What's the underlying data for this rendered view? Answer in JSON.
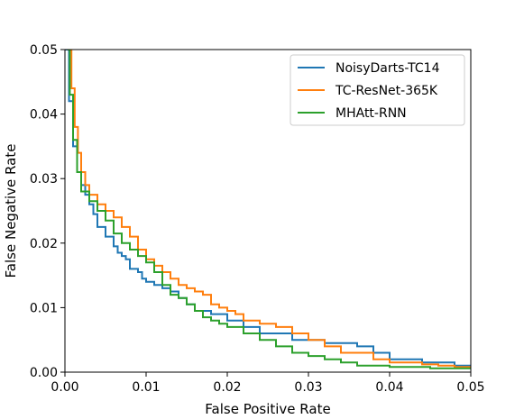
{
  "chart_data": {
    "type": "line",
    "title": "",
    "xlabel": "False Positive Rate",
    "ylabel": "False Negative Rate",
    "xlim": [
      0,
      0.05
    ],
    "ylim": [
      0,
      0.05
    ],
    "xticks": [
      0,
      0.01,
      0.02,
      0.03,
      0.04,
      0.05
    ],
    "xtick_labels": [
      "0.00",
      "0.01",
      "0.02",
      "0.03",
      "0.04",
      "0.05"
    ],
    "yticks": [
      0,
      0.01,
      0.02,
      0.03,
      0.04,
      0.05
    ],
    "ytick_labels": [
      "0.00",
      "0.01",
      "0.02",
      "0.03",
      "0.04",
      "0.05"
    ],
    "grid": false,
    "legend_position": "top-right",
    "series": [
      {
        "name": "NoisyDarts-TC14",
        "color": "#1f77b4",
        "points": [
          [
            0,
            0.05
          ],
          [
            0.0005,
            0.042
          ],
          [
            0.001,
            0.035
          ],
          [
            0.0015,
            0.031
          ],
          [
            0.002,
            0.029
          ],
          [
            0.0025,
            0.0275
          ],
          [
            0.003,
            0.026
          ],
          [
            0.0035,
            0.0245
          ],
          [
            0.004,
            0.0225
          ],
          [
            0.005,
            0.021
          ],
          [
            0.006,
            0.0195
          ],
          [
            0.0065,
            0.0185
          ],
          [
            0.007,
            0.018
          ],
          [
            0.0075,
            0.0175
          ],
          [
            0.008,
            0.016
          ],
          [
            0.009,
            0.0155
          ],
          [
            0.0095,
            0.0145
          ],
          [
            0.01,
            0.014
          ],
          [
            0.011,
            0.0135
          ],
          [
            0.012,
            0.013
          ],
          [
            0.013,
            0.0125
          ],
          [
            0.014,
            0.0115
          ],
          [
            0.015,
            0.0105
          ],
          [
            0.016,
            0.0095
          ],
          [
            0.018,
            0.009
          ],
          [
            0.02,
            0.008
          ],
          [
            0.022,
            0.007
          ],
          [
            0.024,
            0.006
          ],
          [
            0.026,
            0.006
          ],
          [
            0.028,
            0.005
          ],
          [
            0.03,
            0.005
          ],
          [
            0.032,
            0.0045
          ],
          [
            0.034,
            0.0045
          ],
          [
            0.036,
            0.004
          ],
          [
            0.038,
            0.003
          ],
          [
            0.04,
            0.002
          ],
          [
            0.042,
            0.002
          ],
          [
            0.044,
            0.0015
          ],
          [
            0.046,
            0.0015
          ],
          [
            0.048,
            0.001
          ],
          [
            0.05,
            0.001
          ]
        ]
      },
      {
        "name": "TC-ResNet-365K",
        "color": "#ff7f0e",
        "points": [
          [
            0.0005,
            0.05
          ],
          [
            0.0008,
            0.044
          ],
          [
            0.0012,
            0.038
          ],
          [
            0.0016,
            0.034
          ],
          [
            0.002,
            0.031
          ],
          [
            0.0025,
            0.029
          ],
          [
            0.003,
            0.0275
          ],
          [
            0.004,
            0.026
          ],
          [
            0.005,
            0.025
          ],
          [
            0.006,
            0.024
          ],
          [
            0.007,
            0.0225
          ],
          [
            0.008,
            0.021
          ],
          [
            0.009,
            0.019
          ],
          [
            0.01,
            0.0175
          ],
          [
            0.011,
            0.0165
          ],
          [
            0.012,
            0.0155
          ],
          [
            0.013,
            0.0145
          ],
          [
            0.014,
            0.0135
          ],
          [
            0.015,
            0.013
          ],
          [
            0.016,
            0.0125
          ],
          [
            0.017,
            0.012
          ],
          [
            0.018,
            0.0105
          ],
          [
            0.019,
            0.01
          ],
          [
            0.02,
            0.0095
          ],
          [
            0.021,
            0.009
          ],
          [
            0.022,
            0.008
          ],
          [
            0.024,
            0.0075
          ],
          [
            0.026,
            0.007
          ],
          [
            0.028,
            0.006
          ],
          [
            0.03,
            0.005
          ],
          [
            0.032,
            0.004
          ],
          [
            0.034,
            0.003
          ],
          [
            0.036,
            0.003
          ],
          [
            0.038,
            0.002
          ],
          [
            0.04,
            0.0015
          ],
          [
            0.042,
            0.0015
          ],
          [
            0.044,
            0.0012
          ],
          [
            0.046,
            0.001
          ],
          [
            0.048,
            0.0008
          ],
          [
            0.05,
            0.0008
          ]
        ]
      },
      {
        "name": "MHAtt-RNN",
        "color": "#2ca02c",
        "points": [
          [
            0.0003,
            0.05
          ],
          [
            0.0006,
            0.043
          ],
          [
            0.001,
            0.036
          ],
          [
            0.0015,
            0.031
          ],
          [
            0.002,
            0.028
          ],
          [
            0.003,
            0.0265
          ],
          [
            0.004,
            0.025
          ],
          [
            0.005,
            0.0235
          ],
          [
            0.006,
            0.0215
          ],
          [
            0.007,
            0.02
          ],
          [
            0.008,
            0.019
          ],
          [
            0.009,
            0.018
          ],
          [
            0.01,
            0.017
          ],
          [
            0.011,
            0.0155
          ],
          [
            0.012,
            0.0135
          ],
          [
            0.013,
            0.012
          ],
          [
            0.014,
            0.0115
          ],
          [
            0.015,
            0.0105
          ],
          [
            0.016,
            0.0095
          ],
          [
            0.017,
            0.0085
          ],
          [
            0.018,
            0.008
          ],
          [
            0.019,
            0.0075
          ],
          [
            0.02,
            0.007
          ],
          [
            0.022,
            0.006
          ],
          [
            0.024,
            0.005
          ],
          [
            0.026,
            0.004
          ],
          [
            0.028,
            0.003
          ],
          [
            0.03,
            0.0025
          ],
          [
            0.032,
            0.002
          ],
          [
            0.034,
            0.0015
          ],
          [
            0.036,
            0.001
          ],
          [
            0.04,
            0.0008
          ],
          [
            0.045,
            0.0006
          ],
          [
            0.05,
            0.0006
          ]
        ]
      }
    ]
  }
}
